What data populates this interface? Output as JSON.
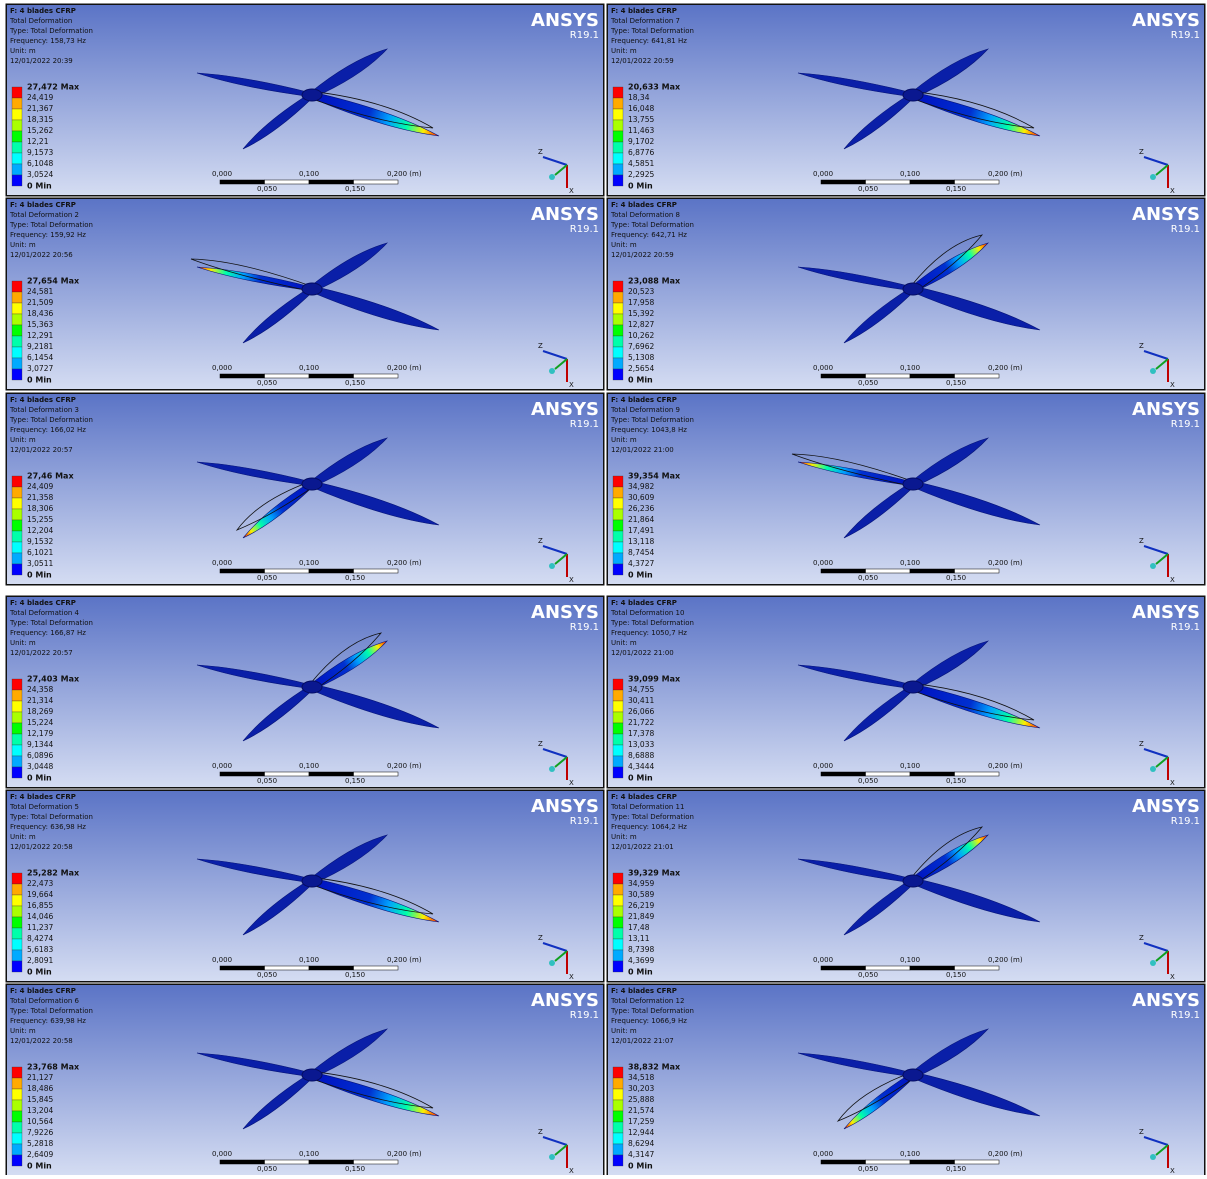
{
  "common": {
    "model": "F: 4 blades CFRP",
    "type_line": "Type: Total Deformation",
    "unit_line": "Unit: m",
    "brand": "ANSYS",
    "version": "R19.1",
    "scale_labels": [
      "0,000",
      "0,100",
      "0,200 (m)"
    ],
    "scale_sub_labels": [
      "0,050",
      "0,150"
    ],
    "axis_z": "Z",
    "axis_x": "X"
  },
  "panels": [
    {
      "title": "Total Deformation",
      "frequency": "Frequency: 158,73 Hz",
      "date": "12/01/2022 20:39",
      "legend": [
        "27,472 Max",
        "24,419",
        "21,367",
        "18,315",
        "15,262",
        "12,21",
        "9,1573",
        "6,1048",
        "3,0524",
        "0 Min"
      ]
    },
    {
      "title": "Total Deformation 2",
      "frequency": "Frequency: 159,92 Hz",
      "date": "12/01/2022 20:56",
      "legend": [
        "27,654 Max",
        "24,581",
        "21,509",
        "18,436",
        "15,363",
        "12,291",
        "9,2181",
        "6,1454",
        "3,0727",
        "0 Min"
      ]
    },
    {
      "title": "Total Deformation 3",
      "frequency": "Frequency: 166,02 Hz",
      "date": "12/01/2022 20:57",
      "legend": [
        "27,46 Max",
        "24,409",
        "21,358",
        "18,306",
        "15,255",
        "12,204",
        "9,1532",
        "6,1021",
        "3,0511",
        "0 Min"
      ]
    },
    {
      "title": "Total Deformation 4",
      "frequency": "Frequency: 166,87 Hz",
      "date": "12/01/2022 20:57",
      "legend": [
        "27,403 Max",
        "24,358",
        "21,314",
        "18,269",
        "15,224",
        "12,179",
        "9,1344",
        "6,0896",
        "3,0448",
        "0 Min"
      ]
    },
    {
      "title": "Total Deformation 5",
      "frequency": "Frequency: 636,98 Hz",
      "date": "12/01/2022 20:58",
      "legend": [
        "25,282 Max",
        "22,473",
        "19,664",
        "16,855",
        "14,046",
        "11,237",
        "8,4274",
        "5,6183",
        "2,8091",
        "0 Min"
      ]
    },
    {
      "title": "Total Deformation 6",
      "frequency": "Frequency: 639,98 Hz",
      "date": "12/01/2022 20:58",
      "legend": [
        "23,768 Max",
        "21,127",
        "18,486",
        "15,845",
        "13,204",
        "10,564",
        "7,9226",
        "5,2818",
        "2,6409",
        "0 Min"
      ]
    },
    {
      "title": "Total Deformation 7",
      "frequency": "Frequency: 641,81 Hz",
      "date": "12/01/2022 20:59",
      "legend": [
        "20,633 Max",
        "18,34",
        "16,048",
        "13,755",
        "11,463",
        "9,1702",
        "6,8776",
        "4,5851",
        "2,2925",
        "0 Min"
      ]
    },
    {
      "title": "Total Deformation 8",
      "frequency": "Frequency: 642,71 Hz",
      "date": "12/01/2022 20:59",
      "legend": [
        "23,088 Max",
        "20,523",
        "17,958",
        "15,392",
        "12,827",
        "10,262",
        "7,6962",
        "5,1308",
        "2,5654",
        "0 Min"
      ]
    },
    {
      "title": "Total Deformation 9",
      "frequency": "Frequency: 1043,8 Hz",
      "date": "12/01/2022 21:00",
      "legend": [
        "39,354 Max",
        "34,982",
        "30,609",
        "26,236",
        "21,864",
        "17,491",
        "13,118",
        "8,7454",
        "4,3727",
        "0 Min"
      ]
    },
    {
      "title": "Total Deformation 10",
      "frequency": "Frequency: 1050,7 Hz",
      "date": "12/01/2022 21:00",
      "legend": [
        "39,099 Max",
        "34,755",
        "30,411",
        "26,066",
        "21,722",
        "17,378",
        "13,033",
        "8,6888",
        "4,3444",
        "0 Min"
      ]
    },
    {
      "title": "Total Deformation 11",
      "frequency": "Frequency: 1064,2 Hz",
      "date": "12/01/2022 21:01",
      "legend": [
        "39,329 Max",
        "34,959",
        "30,589",
        "26,219",
        "21,849",
        "17,48",
        "13,11",
        "8,7398",
        "4,3699",
        "0 Min"
      ]
    },
    {
      "title": "Total Deformation 12",
      "frequency": "Frequency: 1066,9 Hz",
      "date": "12/01/2022 21:07",
      "legend": [
        "38,832 Max",
        "34,518",
        "30,203",
        "25,888",
        "21,574",
        "17,259",
        "12,944",
        "8,6294",
        "4,3147",
        "0 Min"
      ]
    }
  ]
}
